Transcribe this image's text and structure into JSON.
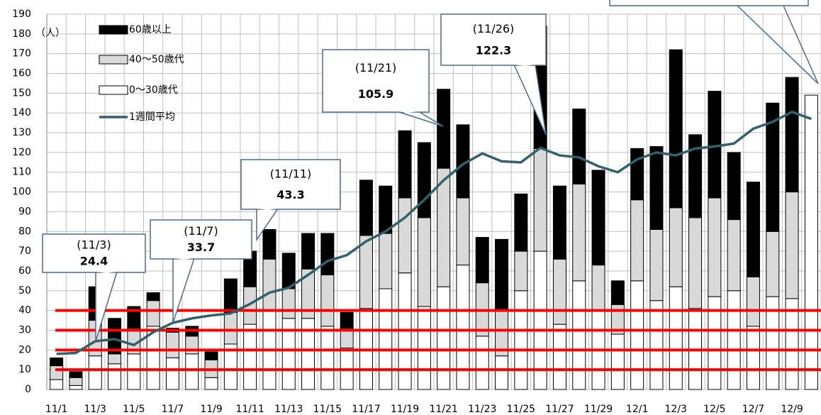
{
  "chart_data": {
    "type": "stacked_bar_line",
    "y_label": "（人）",
    "categories": [
      "11/1",
      null,
      "11/3",
      null,
      "11/5",
      null,
      "11/7",
      null,
      "11/9",
      null,
      "11/11",
      null,
      "11/13",
      null,
      "11/15",
      null,
      "11/17",
      null,
      "11/19",
      null,
      "11/21",
      null,
      "11/23",
      null,
      "11/25",
      null,
      "11/27",
      null,
      "11/29",
      null,
      "12/1",
      null,
      "12/3",
      null,
      "12/5",
      null,
      "12/7",
      null,
      "12/9",
      null
    ],
    "series": [
      {
        "name": "60歳以上",
        "color": "#000000",
        "values": [
          4,
          3,
          17,
          18,
          11,
          4,
          2,
          5,
          4,
          17,
          18,
          15,
          18,
          18,
          21,
          8,
          28,
          24,
          34,
          38,
          40,
          37,
          23,
          36,
          29,
          62,
          37,
          38,
          48,
          12,
          26,
          42,
          80,
          42,
          54,
          34,
          48,
          65,
          58,
          0
        ]
      },
      {
        "name": "40～50歳代",
        "color": "#d9d9d9",
        "values": [
          7,
          4,
          18,
          5,
          13,
          13,
          13,
          9,
          9,
          16,
          19,
          26,
          15,
          25,
          26,
          10,
          37,
          28,
          38,
          45,
          60,
          34,
          27,
          23,
          20,
          52,
          33,
          49,
          23,
          15,
          41,
          36,
          40,
          46,
          50,
          36,
          25,
          33,
          54,
          0
        ]
      },
      {
        "name": "0～30歳代",
        "color": "#ffffff",
        "values": [
          5,
          2,
          17,
          13,
          18,
          32,
          16,
          18,
          6,
          23,
          33,
          40,
          36,
          36,
          32,
          21,
          41,
          51,
          59,
          42,
          52,
          63,
          27,
          17,
          50,
          70,
          33,
          55,
          40,
          28,
          55,
          45,
          52,
          41,
          47,
          50,
          32,
          47,
          46,
          149
        ]
      }
    ],
    "line_series": {
      "name": "1週間平均",
      "color": "#31616b",
      "values": [
        18,
        18.5,
        24.4,
        25.5,
        22.5,
        29,
        33.7,
        36,
        37.5,
        38.5,
        43.3,
        49,
        51.5,
        58,
        65,
        68,
        75,
        80,
        87,
        96,
        105.9,
        114,
        119.5,
        115.5,
        115,
        122.3,
        118.5,
        117.5,
        113,
        110,
        116.5,
        120,
        118.5,
        122,
        123,
        124.5,
        132,
        135.5,
        140.5,
        137
      ]
    },
    "reference_lines": {
      "color": "#ff0000",
      "values": [
        10,
        20,
        30,
        40
      ]
    },
    "annotations": [
      {
        "label": "(11/3)",
        "value": 24.4
      },
      {
        "label": "(11/7)",
        "value": 33.7
      },
      {
        "label": "(11/11)",
        "value": 43.3
      },
      {
        "label": "(11/21)",
        "value": 105.9
      },
      {
        "label": "(11/26)",
        "value": 122.3
      }
    ],
    "ylim": [
      0,
      190
    ],
    "yticks": [
      0,
      10,
      20,
      30,
      40,
      50,
      60,
      70,
      80,
      90,
      100,
      110,
      120,
      130,
      140,
      150,
      160,
      170,
      180,
      190
    ],
    "grid": true
  }
}
